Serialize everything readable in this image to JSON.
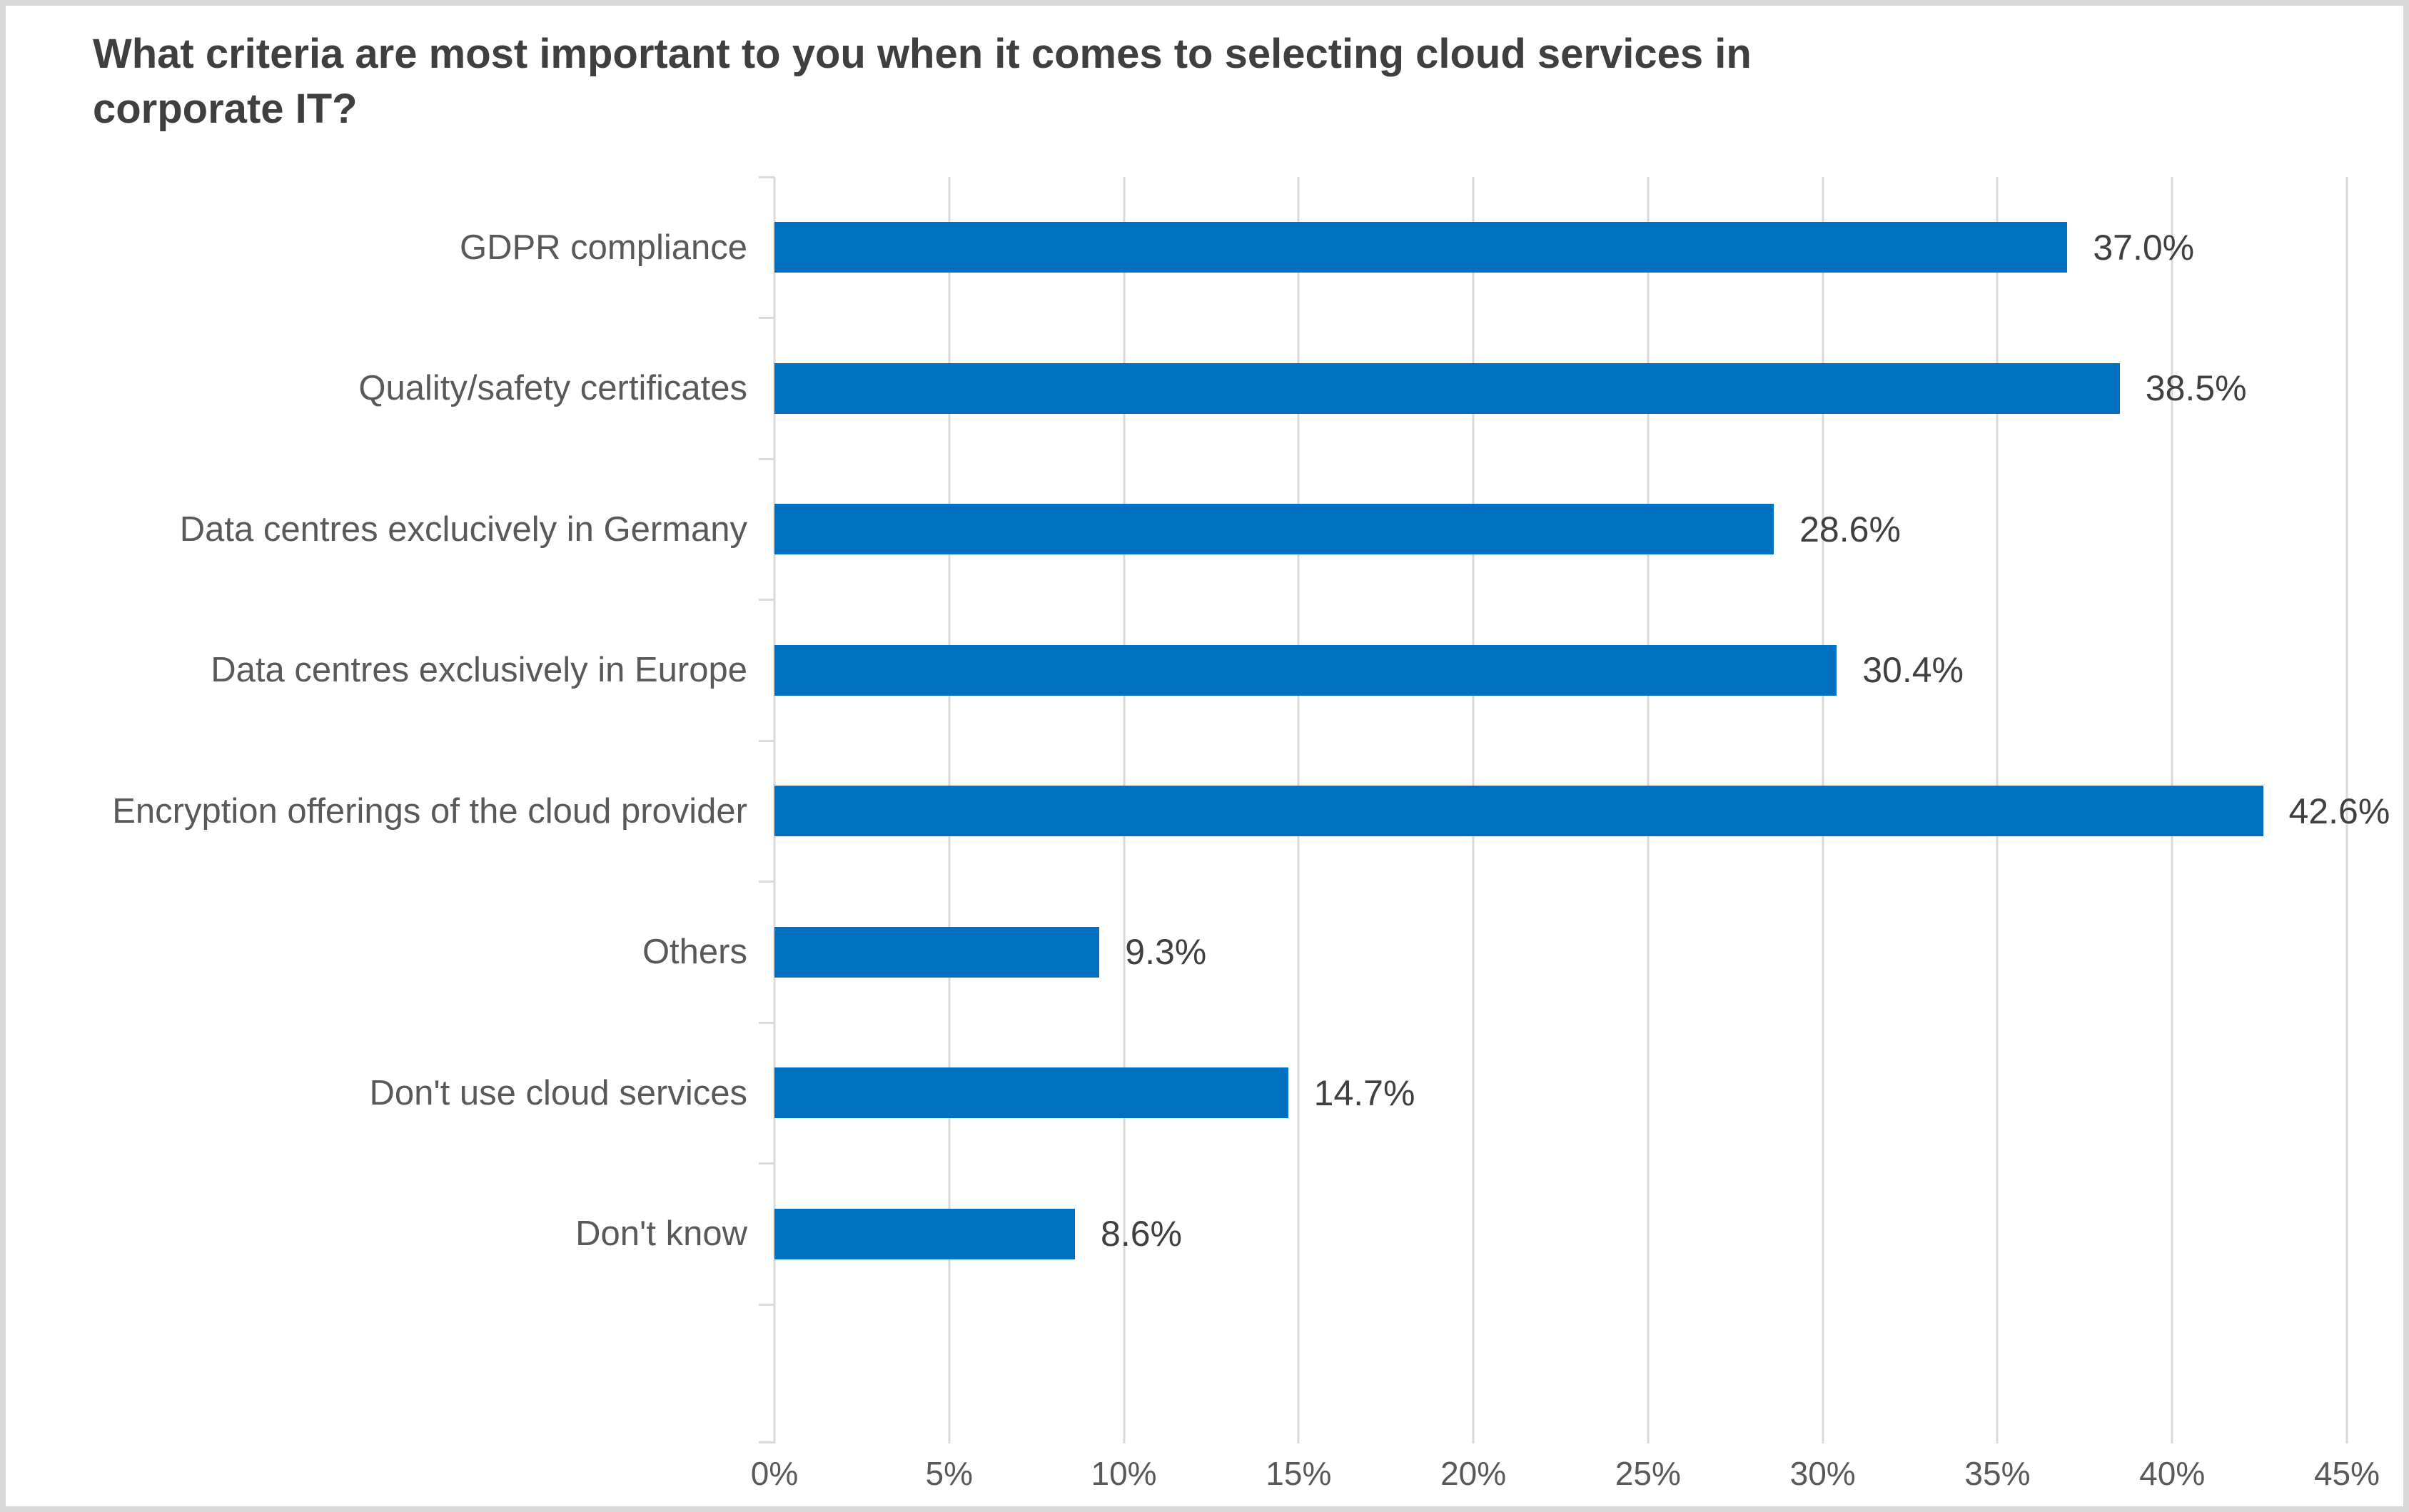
{
  "frame": {
    "background": "#ffffff",
    "border_color": "#d9d9d9"
  },
  "chart_data": {
    "type": "bar",
    "orientation": "horizontal",
    "title": "What criteria are most important to you when it comes to selecting cloud services in corporate IT?",
    "categories": [
      "GDPR compliance",
      "Quality/safety certificates",
      "Data centres exclucively in Germany",
      "Data centres exclusively in Europe",
      "Encryption offerings of the cloud provider",
      "Others",
      "Don't use cloud services",
      "Don't know"
    ],
    "values": [
      37.0,
      38.5,
      28.6,
      30.4,
      42.6,
      9.3,
      14.7,
      8.6
    ],
    "value_labels": [
      "37.0%",
      "38.5%",
      "28.6%",
      "30.4%",
      "42.6%",
      "9.3%",
      "14.7%",
      "8.6%"
    ],
    "x_tick_labels": [
      "0%",
      "5%",
      "10%",
      "15%",
      "20%",
      "25%",
      "30%",
      "35%",
      "40%",
      "45%"
    ],
    "xlim": [
      0,
      45
    ],
    "x_tick_step": 5,
    "grid": true,
    "legend": "none",
    "bar_color": "#0070c0",
    "title_color": "#3f3f3f",
    "category_label_color": "#595959",
    "value_label_color": "#404040",
    "tick_label_color": "#595959",
    "gridline_color": "#d9d9d9"
  }
}
